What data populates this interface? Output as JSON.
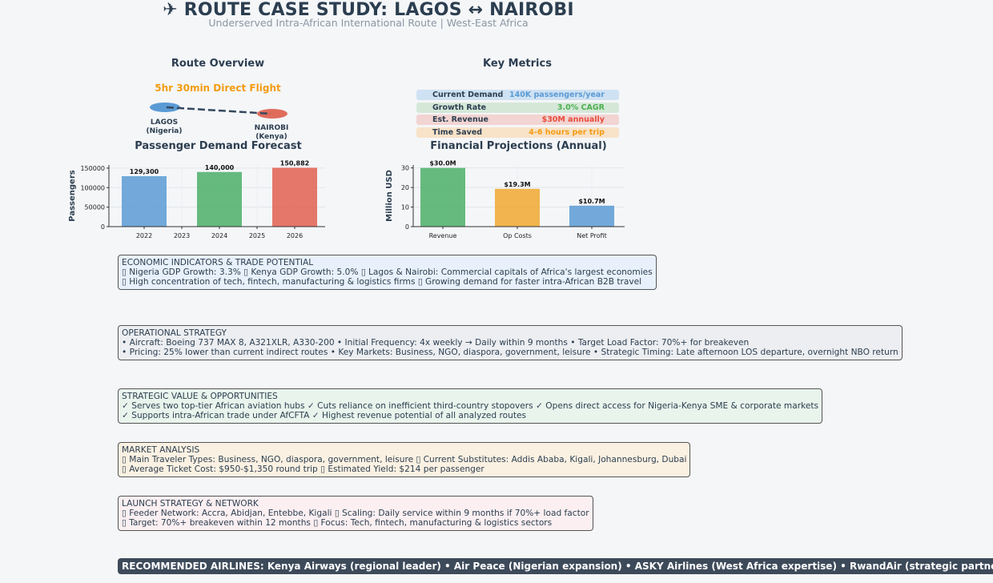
{
  "header": {
    "title": "✈ ROUTE CASE STUDY: LAGOS ↔ NAIROBI",
    "subtitle": "Underserved Intra-African International Route | West-East Africa"
  },
  "route_overview": {
    "title": "Route Overview",
    "flight_time": "5hr 30min Direct Flight",
    "origin": {
      "name": "LAGOS",
      "country": "(Nigeria)",
      "color": "#5b9bd5"
    },
    "destination": {
      "name": "NAIROBI",
      "country": "(Kenya)",
      "color": "#e06c5c"
    }
  },
  "key_metrics": {
    "title": "Key Metrics",
    "items": [
      {
        "label": "Current Demand",
        "value": "140K passengers/year",
        "bg": "#cfe2f3",
        "color": "#5b9bd5"
      },
      {
        "label": "Growth Rate",
        "value": "3.0% CAGR",
        "bg": "#d5e8d8",
        "color": "#4caf50"
      },
      {
        "label": "Est. Revenue",
        "value": "$30M annually",
        "bg": "#f2d4d2",
        "color": "#e74c3c"
      },
      {
        "label": "Time Saved",
        "value": "4-6 hours per trip",
        "bg": "#f8e2c8",
        "color": "#f39c12"
      }
    ]
  },
  "chart_data": [
    {
      "type": "bar",
      "title": "Passenger Demand Forecast",
      "xlabel": "",
      "ylabel": "Passengers",
      "x_ticks": [
        "2022",
        "2023",
        "2024",
        "2025",
        "2026"
      ],
      "categories": [
        "2022",
        "2024",
        "2026"
      ],
      "values": [
        129300,
        140000,
        150882
      ],
      "data_labels": [
        "129,300",
        "140,000",
        "150,882"
      ],
      "colors": [
        "#5b9bd5",
        "#4caf68",
        "#e06050"
      ],
      "ylim": [
        0,
        158000
      ],
      "yticks": [
        0,
        50000,
        100000,
        150000
      ],
      "grid": true
    },
    {
      "type": "bar",
      "title": "Financial Projections (Annual)",
      "xlabel": "",
      "ylabel": "Million USD",
      "categories": [
        "Revenue",
        "Op Costs",
        "Net Profit"
      ],
      "values": [
        30.0,
        19.3,
        10.7
      ],
      "data_labels": [
        "$30.0M",
        "$19.3M",
        "$10.7M"
      ],
      "colors": [
        "#4caf68",
        "#f0a830",
        "#5b9bd5"
      ],
      "ylim": [
        0,
        31.5
      ],
      "yticks": [
        0,
        10,
        20,
        30
      ],
      "grid": true
    }
  ],
  "boxes": {
    "economic": {
      "title": "ECONOMIC INDICATORS & TRADE POTENTIAL",
      "line1": "▯ Nigeria GDP Growth: 3.3%  ▯ Kenya GDP Growth: 5.0%  ▯ Lagos & Nairobi: Commercial capitals of Africa's largest economies",
      "line2": "▯ High concentration of tech, fintech, manufacturing & logistics firms  ▯ Growing demand for faster intra-African B2B travel"
    },
    "operational": {
      "title": "OPERATIONAL STRATEGY",
      "line1": "• Aircraft: Boeing 737 MAX 8, A321XLR, A330-200  • Initial Frequency: 4x weekly → Daily within 9 months  • Target Load Factor: 70%+ for breakeven",
      "line2": "• Pricing: 25% lower than current indirect routes  • Key Markets: Business, NGO, diaspora, government, leisure  • Strategic Timing: Late afternoon LOS departure, overnight NBO return"
    },
    "strategic": {
      "title": "STRATEGIC VALUE & OPPORTUNITIES",
      "line1": "✓ Serves two top-tier African aviation hubs  ✓ Cuts reliance on inefficient third-country stopovers  ✓ Opens direct access for Nigeria-Kenya SME & corporate markets",
      "line2": "✓ Supports intra-African trade under AfCFTA  ✓ Highest revenue potential of all analyzed routes"
    },
    "market": {
      "title": "MARKET ANALYSIS",
      "line1": "▯ Main Traveler Types: Business, NGO, diaspora, government, leisure  ▯ Current Substitutes: Addis Ababa, Kigali, Johannesburg, Dubai",
      "line2": "▯ Average Ticket Cost: $950-$1,350 round trip  ▯ Estimated Yield: $214 per passenger"
    },
    "launch": {
      "title": "LAUNCH STRATEGY & NETWORK",
      "line1": "▯ Feeder Network: Accra, Abidjan, Entebbe, Kigali  ▯ Scaling: Daily service within 9 months if 70%+ load factor",
      "line2": "▯ Target: 70%+ breakeven within 12 months  ▯ Focus: Tech, fintech, manufacturing & logistics sectors"
    }
  },
  "recommended": "RECOMMENDED AIRLINES: Kenya Airways (regional leader) • Air Peace (Nigerian expansion) • ASKY Airlines (West Africa expertise) • RwandAir (strategic partnership)"
}
